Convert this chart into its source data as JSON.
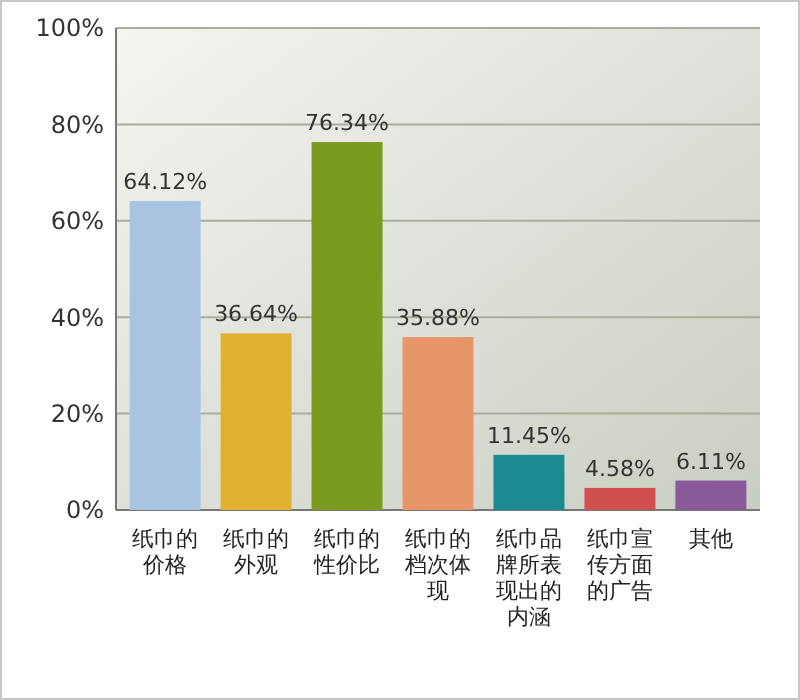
{
  "chart_data": {
    "type": "bar",
    "categories": [
      "纸巾的价格",
      "纸巾的外观",
      "纸巾的性价比",
      "纸巾的档次体现",
      "纸巾品牌所表现出的内涵",
      "纸巾宣传方面的广告",
      "其他"
    ],
    "values": [
      64.12,
      36.64,
      76.34,
      35.88,
      11.45,
      4.58,
      6.11
    ],
    "value_labels": [
      "64.12%",
      "36.64%",
      "76.34%",
      "35.88%",
      "11.45%",
      "4.58%",
      "6.11%"
    ],
    "colors": [
      "#a9c4e0",
      "#e0b030",
      "#7a9a20",
      "#e8956a",
      "#1a8a90",
      "#d05050",
      "#8a5a9a"
    ],
    "ylim": [
      0,
      100
    ],
    "yticks": [
      {
        "value": 0,
        "label": "0%"
      },
      {
        "value": 20,
        "label": "20%"
      },
      {
        "value": 40,
        "label": "40%"
      },
      {
        "value": 60,
        "label": "60%"
      },
      {
        "value": 80,
        "label": "80%"
      },
      {
        "value": 100,
        "label": "100%"
      }
    ],
    "grid": "y"
  }
}
